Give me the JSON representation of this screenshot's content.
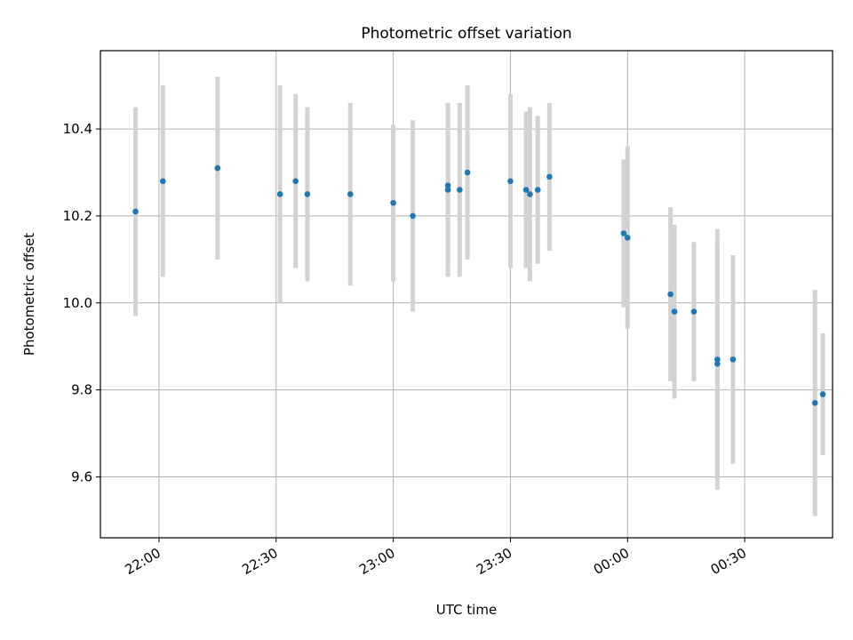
{
  "chart_data": {
    "type": "scatter",
    "title": "Photometric offset variation",
    "xlabel": "UTC time",
    "ylabel": "Photometric offset",
    "x_axis": {
      "scale": "time",
      "range": [
        "21:47",
        "00:50"
      ],
      "ticks": [
        "22:00",
        "22:30",
        "23:00",
        "23:30",
        "00:00",
        "00:30"
      ]
    },
    "y_axis": {
      "range": [
        9.46,
        10.58
      ],
      "ticks": [
        "9.6",
        "9.8",
        "10.0",
        "10.2",
        "10.4"
      ]
    },
    "grid": true,
    "colors": {
      "points": "#1f77b4",
      "error_bars": "#d3d3d3",
      "grid": "#b0b0b0"
    },
    "series": [
      {
        "points": [
          {
            "x": "21:54",
            "y": 10.21,
            "err": 0.24
          },
          {
            "x": "22:01",
            "y": 10.28,
            "err": 0.22
          },
          {
            "x": "22:15",
            "y": 10.31,
            "err": 0.21
          },
          {
            "x": "22:31",
            "y": 10.25,
            "err": 0.25
          },
          {
            "x": "22:35",
            "y": 10.28,
            "err": 0.2
          },
          {
            "x": "22:38",
            "y": 10.25,
            "err": 0.2
          },
          {
            "x": "22:49",
            "y": 10.25,
            "err": 0.21
          },
          {
            "x": "23:00",
            "y": 10.23,
            "err": 0.18
          },
          {
            "x": "23:05",
            "y": 10.2,
            "err": 0.22
          },
          {
            "x": "23:14",
            "y": 10.26,
            "err": 0.2
          },
          {
            "x": "23:14",
            "y": 10.27,
            "err": 0.19
          },
          {
            "x": "23:17",
            "y": 10.26,
            "err": 0.2
          },
          {
            "x": "23:19",
            "y": 10.3,
            "err": 0.2
          },
          {
            "x": "23:30",
            "y": 10.28,
            "err": 0.2
          },
          {
            "x": "23:34",
            "y": 10.26,
            "err": 0.18
          },
          {
            "x": "23:35",
            "y": 10.25,
            "err": 0.2
          },
          {
            "x": "23:37",
            "y": 10.26,
            "err": 0.17
          },
          {
            "x": "23:40",
            "y": 10.29,
            "err": 0.17
          },
          {
            "x": "23:59",
            "y": 10.16,
            "err": 0.17
          },
          {
            "x": "00:00",
            "y": 10.15,
            "err": 0.21
          },
          {
            "x": "00:11",
            "y": 10.02,
            "err": 0.2
          },
          {
            "x": "00:12",
            "y": 9.98,
            "err": 0.2
          },
          {
            "x": "00:17",
            "y": 9.98,
            "err": 0.16
          },
          {
            "x": "00:23",
            "y": 9.87,
            "err": 0.3
          },
          {
            "x": "00:23",
            "y": 9.86,
            "err": 0.28
          },
          {
            "x": "00:27",
            "y": 9.87,
            "err": 0.24
          },
          {
            "x": "00:48",
            "y": 9.77,
            "err": 0.26
          },
          {
            "x": "00:50",
            "y": 9.79,
            "err": 0.14
          }
        ]
      }
    ]
  }
}
